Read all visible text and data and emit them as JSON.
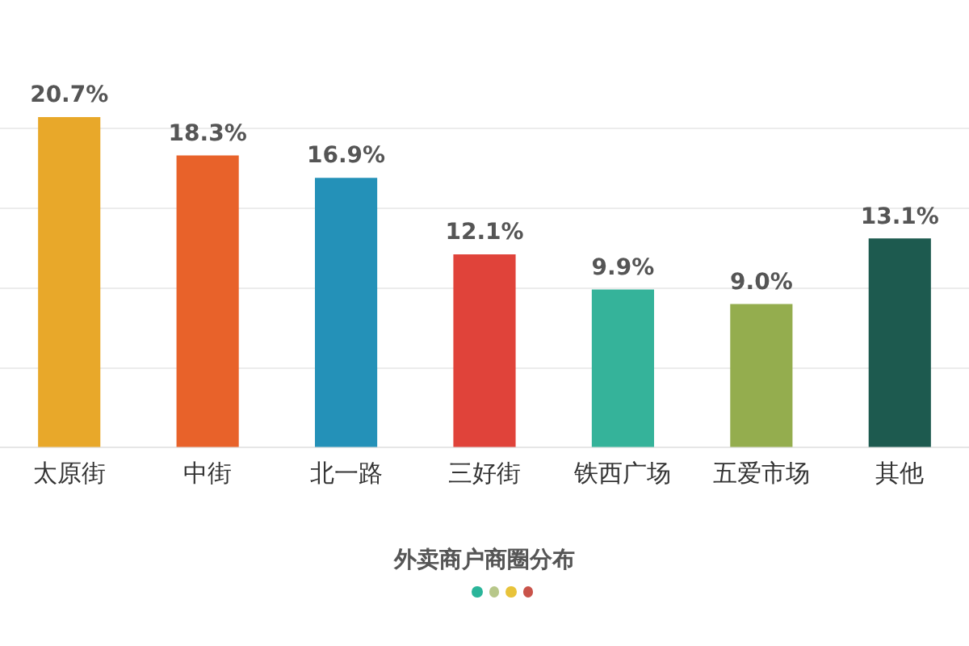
{
  "chart_data": {
    "type": "bar",
    "title": "外卖商户商圈分布",
    "categories": [
      "太原街",
      "中街",
      "北一路",
      "三好街",
      "铁西广场",
      "五爱市场",
      "其他"
    ],
    "values": [
      20.7,
      18.3,
      16.9,
      12.1,
      9.9,
      9.0,
      13.1
    ],
    "value_labels": [
      "20.7%",
      "18.3%",
      "16.9%",
      "12.1%",
      "9.9%",
      "9.0%",
      "13.1%"
    ],
    "colors": [
      "#e8a82a",
      "#e8622a",
      "#2491b8",
      "#e0433a",
      "#35b39a",
      "#94ad4e",
      "#1d5a4f"
    ],
    "yticks": [
      {
        "value": 0,
        "label": null
      },
      {
        "value": 5,
        "label": null
      },
      {
        "value": 10,
        "label": null
      },
      {
        "value": 15,
        "label": null
      },
      {
        "value": 20,
        "label": null
      }
    ],
    "grid": "y",
    "tick_labels": "x",
    "legend": false
  }
}
